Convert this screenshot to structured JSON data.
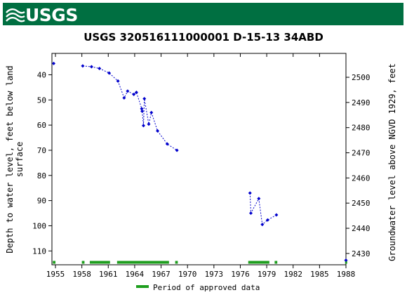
{
  "header": {
    "logo_text": "USGS",
    "brand_color": "#006f41"
  },
  "chart_data": {
    "type": "scatter",
    "title": "USGS 320516111000001 D-15-13 34ABD",
    "ylabel_left_line1": "Depth to water level, feet below land",
    "ylabel_left_line2": "surface",
    "ylabel_right": "Groundwater level above NGVD 1929, feet",
    "xlim": [
      1954.6,
      1988
    ],
    "ylim_left": [
      115.5,
      31.5
    ],
    "ylim_right": [
      2425.5,
      2509.5
    ],
    "x_ticks": [
      1955,
      1958,
      1961,
      1964,
      1967,
      1970,
      1973,
      1976,
      1979,
      1982,
      1985,
      1988
    ],
    "y_ticks_left": [
      40,
      50,
      60,
      70,
      80,
      90,
      100,
      110
    ],
    "y_ticks_right": [
      2430,
      2440,
      2450,
      2460,
      2470,
      2480,
      2490,
      2500
    ],
    "grid": false,
    "marker_color": "#0000cc",
    "series": [
      {
        "segments": [
          [
            [
              1954.8,
              35.5
            ]
          ],
          [
            [
              1958.1,
              36.5
            ],
            [
              1959.1,
              36.8
            ],
            [
              1960.0,
              37.5
            ],
            [
              1961.1,
              39.3
            ],
            [
              1962.1,
              42.5
            ],
            [
              1962.8,
              49.2
            ],
            [
              1963.2,
              46.5
            ],
            [
              1963.9,
              47.8
            ],
            [
              1964.2,
              47.0
            ],
            [
              1964.8,
              53.5
            ],
            [
              1964.85,
              54.5
            ],
            [
              1965.0,
              60.2
            ],
            [
              1965.1,
              49.5
            ],
            [
              1965.6,
              59.6
            ],
            [
              1965.9,
              55.0
            ],
            [
              1966.6,
              62.3
            ],
            [
              1967.7,
              67.5
            ],
            [
              1968.8,
              70.0
            ]
          ],
          [
            [
              1977.1,
              87.0
            ],
            [
              1977.2,
              95.0
            ],
            [
              1978.1,
              89.2
            ],
            [
              1978.5,
              99.5
            ],
            [
              1979.1,
              97.7
            ],
            [
              1980.1,
              95.7
            ]
          ],
          [
            [
              1988.0,
              113.7
            ]
          ]
        ]
      }
    ],
    "approved_periods": [
      [
        1954.7,
        1955.0
      ],
      [
        1958.0,
        1958.3
      ],
      [
        1958.9,
        1961.2
      ],
      [
        1962.0,
        1967.9
      ],
      [
        1968.6,
        1968.9
      ],
      [
        1976.9,
        1979.3
      ],
      [
        1979.9,
        1980.2
      ],
      [
        1987.9,
        1988.0
      ]
    ],
    "approved_color": "#1e9e1e",
    "legend": {
      "label": "Period of approved data",
      "position": "bottom"
    }
  }
}
